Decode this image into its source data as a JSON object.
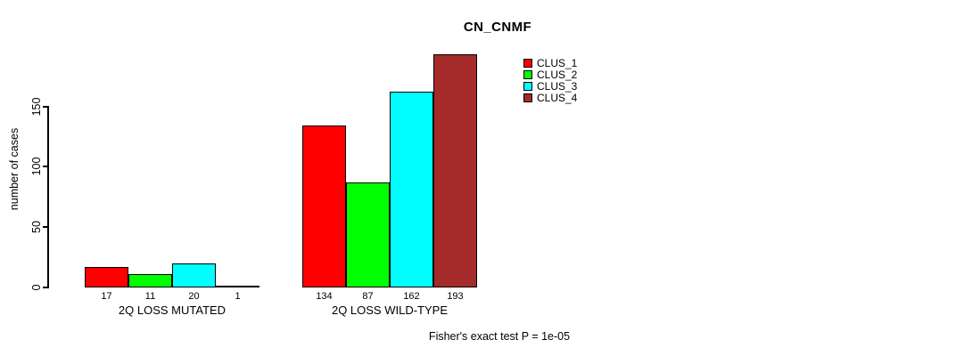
{
  "chart_data": {
    "type": "bar",
    "title": "CN_CNMF",
    "ylabel": "number of cases",
    "categories": [
      "2Q LOSS MUTATED",
      "2Q LOSS WILD-TYPE"
    ],
    "series": [
      {
        "name": "CLUS_1",
        "color": "#ff0000",
        "values": [
          17,
          134
        ]
      },
      {
        "name": "CLUS_2",
        "color": "#00ff00",
        "values": [
          11,
          87
        ]
      },
      {
        "name": "CLUS_3",
        "color": "#00ffff",
        "values": [
          20,
          162
        ]
      },
      {
        "name": "CLUS_4",
        "color": "#a52a2a",
        "values": [
          1,
          193
        ]
      }
    ],
    "yticks": [
      0,
      50,
      100,
      150
    ],
    "ylim": [
      0,
      150
    ],
    "grid": false,
    "bar_value_labels_shown": true,
    "legend_position": "top-right",
    "annotation": "Fisher's exact test P = 1e-05"
  }
}
